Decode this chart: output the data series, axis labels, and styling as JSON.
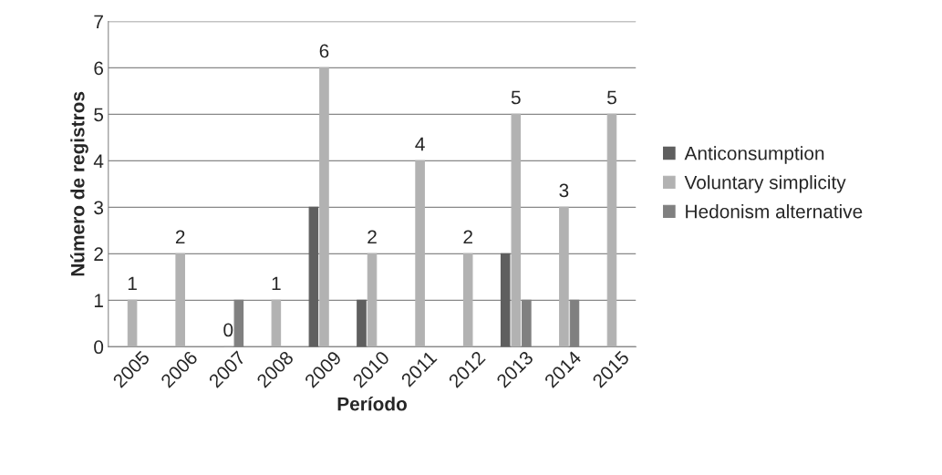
{
  "chart_data": {
    "type": "bar",
    "xlabel": "Período",
    "ylabel": "Número de registros",
    "categories": [
      "2005",
      "2006",
      "2007",
      "2008",
      "2009",
      "2010",
      "2011",
      "2012",
      "2013",
      "2014",
      "2015"
    ],
    "series": [
      {
        "name": "Anticonsumption",
        "color": "#5f5f5f",
        "values": [
          null,
          null,
          null,
          null,
          3,
          1,
          null,
          null,
          2,
          null,
          null
        ]
      },
      {
        "name": "Voluntary simplicity",
        "color": "#b2b2b2",
        "values": [
          1,
          2,
          0,
          1,
          6,
          2,
          4,
          2,
          5,
          3,
          5
        ],
        "value_labels": [
          "1",
          "2",
          "0",
          "1",
          "6",
          "2",
          "4",
          "2",
          "5",
          "3",
          "5"
        ]
      },
      {
        "name": "Hedonism alternative",
        "color": "#808080",
        "values": [
          null,
          null,
          1,
          null,
          null,
          null,
          null,
          null,
          1,
          1,
          null
        ]
      }
    ],
    "ylim": [
      0,
      7
    ],
    "yticks": [
      0,
      1,
      2,
      3,
      4,
      5,
      6,
      7
    ],
    "grid": "y",
    "legend": "right"
  }
}
